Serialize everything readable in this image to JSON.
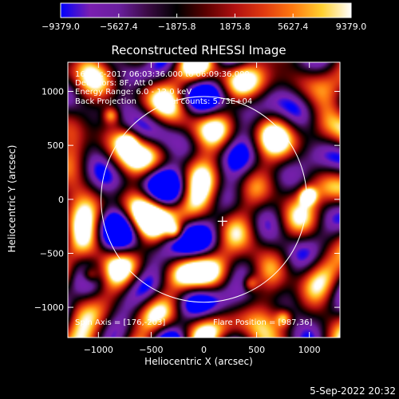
{
  "chart_data": {
    "type": "heatmap",
    "title": "Reconstructed RHESSI Image",
    "xlabel": "Heliocentric X (arcsec)",
    "ylabel": "Heliocentric Y (arcsec)",
    "xlim": [
      -1290,
      1290
    ],
    "ylim": [
      -1280,
      1270
    ],
    "xticks": [
      -1000,
      -500,
      0,
      500,
      1000
    ],
    "yticks": [
      -1000,
      -500,
      0,
      500,
      1000
    ],
    "xtick_labels": [
      "−1000",
      "−500",
      "0",
      "500",
      "1000"
    ],
    "ytick_labels": [
      "−1000",
      "−500",
      "0",
      "500",
      "1000"
    ],
    "colorbar": {
      "range": [
        -9379.0,
        9379.0
      ],
      "tick_labels": [
        "−9379.0",
        "−5627.4",
        "−1875.8",
        "1875.8",
        "5627.4",
        "9379.0"
      ],
      "colors": [
        "#0000ff",
        "#7a1fb0",
        "#6a1f9e",
        "#3a0a44",
        "#000000",
        "#5a0000",
        "#b01010",
        "#e03a10",
        "#ff7a10",
        "#ffd030",
        "#ffffff"
      ]
    },
    "annotations": [
      "16-Dec-2017 06:03:36.000 to 06:09:36.000",
      "Detectors: 8F, Att 0",
      "Energy Range: 6.0 - 12.0 keV",
      "Back Projection",
      "Total counts: 5.73E+04"
    ],
    "footer_left": "Spin Axis = [176,-203]",
    "footer_right": "Flare Position = [987,36]",
    "solar_disk": {
      "center": [
        0,
        0
      ],
      "radius_arcsec": 975
    },
    "crosshair": [
      176,
      -203
    ],
    "bright_peaks": [
      {
        "x": 987,
        "y": 36,
        "intensity": 9379
      },
      {
        "x": -270,
        "y": -300,
        "intensity": 7800
      },
      {
        "x": -880,
        "y": 780,
        "intensity": 7200
      },
      {
        "x": -720,
        "y": 530,
        "intensity": 6800
      },
      {
        "x": 440,
        "y": -780,
        "intensity": 6600
      },
      {
        "x": 760,
        "y": -1100,
        "intensity": 6500
      },
      {
        "x": -1080,
        "y": -700,
        "intensity": 6200
      }
    ],
    "grid": false
  },
  "timestamp": "5-Sep-2022 20:32"
}
